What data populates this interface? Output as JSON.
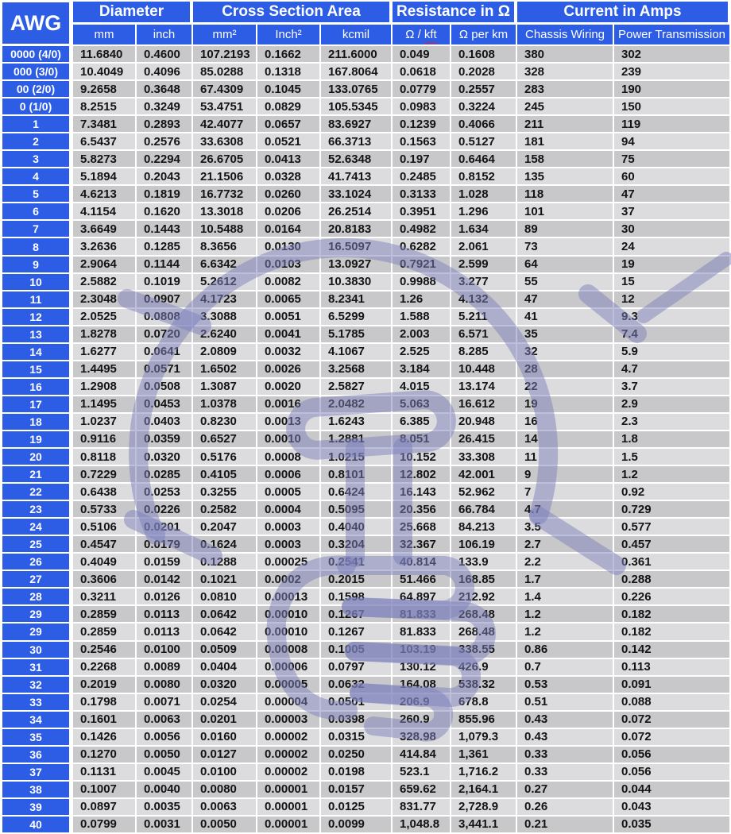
{
  "header": {
    "awg": "AWG",
    "groups": [
      {
        "label": "Diameter",
        "span": 2
      },
      {
        "label": "Cross Section Area",
        "span": 3
      },
      {
        "label": "Resistance in Ω",
        "span": 2
      },
      {
        "label": "Current in Amps",
        "span": 2
      }
    ],
    "sub": [
      "mm",
      "inch",
      "mm²",
      "Inch²",
      "kcmil",
      {
        "prefix": "Ω /",
        "word": "kft"
      },
      "Ω per km",
      "Chassis Wiring",
      "Power Transmission"
    ]
  },
  "colors": {
    "header_blue": "#2d5ce5",
    "row_dark": "#c8c8cb",
    "row_light": "#dcdcde",
    "cell_text": "#141414",
    "watermark_purple": "#7c80ba",
    "spellcheck_red": "#e02020"
  },
  "watermark_icon": "lightbulb-sketch",
  "chart_data": {
    "type": "table",
    "columns": [
      "AWG",
      "Diameter mm",
      "Diameter inch",
      "Cross Section Area mm²",
      "Cross Section Area Inch²",
      "Cross Section Area kcmil",
      "Resistance Ω / kft",
      "Resistance Ω per km",
      "Current in Amps Chassis Wiring",
      "Current in Amps Power Transmission"
    ],
    "rows": [
      [
        "0000 (4/0)",
        "11.6840",
        "0.4600",
        "107.2193",
        "0.1662",
        "211.6000",
        "0.049",
        "0.1608",
        "380",
        "302"
      ],
      [
        "000 (3/0)",
        "10.4049",
        "0.4096",
        "85.0288",
        "0.1318",
        "167.8064",
        "0.0618",
        "0.2028",
        "328",
        "239"
      ],
      [
        "00 (2/0)",
        "9.2658",
        "0.3648",
        "67.4309",
        "0.1045",
        "133.0765",
        "0.0779",
        "0.2557",
        "283",
        "190"
      ],
      [
        "0 (1/0)",
        "8.2515",
        "0.3249",
        "53.4751",
        "0.0829",
        "105.5345",
        "0.0983",
        "0.3224",
        "245",
        "150"
      ],
      [
        "1",
        "7.3481",
        "0.2893",
        "42.4077",
        "0.0657",
        "83.6927",
        "0.1239",
        "0.4066",
        "211",
        "119"
      ],
      [
        "2",
        "6.5437",
        "0.2576",
        "33.6308",
        "0.0521",
        "66.3713",
        "0.1563",
        "0.5127",
        "181",
        "94"
      ],
      [
        "3",
        "5.8273",
        "0.2294",
        "26.6705",
        "0.0413",
        "52.6348",
        "0.197",
        "0.6464",
        "158",
        "75"
      ],
      [
        "4",
        "5.1894",
        "0.2043",
        "21.1506",
        "0.0328",
        "41.7413",
        "0.2485",
        "0.8152",
        "135",
        "60"
      ],
      [
        "5",
        "4.6213",
        "0.1819",
        "16.7732",
        "0.0260",
        "33.1024",
        "0.3133",
        "1.028",
        "118",
        "47"
      ],
      [
        "6",
        "4.1154",
        "0.1620",
        "13.3018",
        "0.0206",
        "26.2514",
        "0.3951",
        "1.296",
        "101",
        "37"
      ],
      [
        "7",
        "3.6649",
        "0.1443",
        "10.5488",
        "0.0164",
        "20.8183",
        "0.4982",
        "1.634",
        "89",
        "30"
      ],
      [
        "8",
        "3.2636",
        "0.1285",
        "8.3656",
        "0.0130",
        "16.5097",
        "0.6282",
        "2.061",
        "73",
        "24"
      ],
      [
        "9",
        "2.9064",
        "0.1144",
        "6.6342",
        "0.0103",
        "13.0927",
        "0.7921",
        "2.599",
        "64",
        "19"
      ],
      [
        "10",
        "2.5882",
        "0.1019",
        "5.2612",
        "0.0082",
        "10.3830",
        "0.9988",
        "3.277",
        "55",
        "15"
      ],
      [
        "11",
        "2.3048",
        "0.0907",
        "4.1723",
        "0.0065",
        "8.2341",
        "1.26",
        "4.132",
        "47",
        "12"
      ],
      [
        "12",
        "2.0525",
        "0.0808",
        "3.3088",
        "0.0051",
        "6.5299",
        "1.588",
        "5.211",
        "41",
        "9.3"
      ],
      [
        "13",
        "1.8278",
        "0.0720",
        "2.6240",
        "0.0041",
        "5.1785",
        "2.003",
        "6.571",
        "35",
        "7.4"
      ],
      [
        "14",
        "1.6277",
        "0.0641",
        "2.0809",
        "0.0032",
        "4.1067",
        "2.525",
        "8.285",
        "32",
        "5.9"
      ],
      [
        "15",
        "1.4495",
        "0.0571",
        "1.6502",
        "0.0026",
        "3.2568",
        "3.184",
        "10.448",
        "28",
        "4.7"
      ],
      [
        "16",
        "1.2908",
        "0.0508",
        "1.3087",
        "0.0020",
        "2.5827",
        "4.015",
        "13.174",
        "22",
        "3.7"
      ],
      [
        "17",
        "1.1495",
        "0.0453",
        "1.0378",
        "0.0016",
        "2.0482",
        "5.063",
        "16.612",
        "19",
        "2.9"
      ],
      [
        "18",
        "1.0237",
        "0.0403",
        "0.8230",
        "0.0013",
        "1.6243",
        "6.385",
        "20.948",
        "16",
        "2.3"
      ],
      [
        "19",
        "0.9116",
        "0.0359",
        "0.6527",
        "0.0010",
        "1.2881",
        "8.051",
        "26.415",
        "14",
        "1.8"
      ],
      [
        "20",
        "0.8118",
        "0.0320",
        "0.5176",
        "0.0008",
        "1.0215",
        "10.152",
        "33.308",
        "11",
        "1.5"
      ],
      [
        "21",
        "0.7229",
        "0.0285",
        "0.4105",
        "0.0006",
        "0.8101",
        "12.802",
        "42.001",
        "9",
        "1.2"
      ],
      [
        "22",
        "0.6438",
        "0.0253",
        "0.3255",
        "0.0005",
        "0.6424",
        "16.143",
        "52.962",
        "7",
        "0.92"
      ],
      [
        "23",
        "0.5733",
        "0.0226",
        "0.2582",
        "0.0004",
        "0.5095",
        "20.356",
        "66.784",
        "4.7",
        "0.729"
      ],
      [
        "24",
        "0.5106",
        "0.0201",
        "0.2047",
        "0.0003",
        "0.4040",
        "25.668",
        "84.213",
        "3.5",
        "0.577"
      ],
      [
        "25",
        "0.4547",
        "0.0179",
        "0.1624",
        "0.0003",
        "0.3204",
        "32.367",
        "106.19",
        "2.7",
        "0.457"
      ],
      [
        "26",
        "0.4049",
        "0.0159",
        "0.1288",
        "0.00025",
        "0.2541",
        "40.814",
        "133.9",
        "2.2",
        "0.361"
      ],
      [
        "27",
        "0.3606",
        "0.0142",
        "0.1021",
        "0.0002",
        "0.2015",
        "51.466",
        "168.85",
        "1.7",
        "0.288"
      ],
      [
        "28",
        "0.3211",
        "0.0126",
        "0.0810",
        "0.00013",
        "0.1598",
        "64.897",
        "212.92",
        "1.4",
        "0.226"
      ],
      [
        "29",
        "0.2859",
        "0.0113",
        "0.0642",
        "0.00010",
        "0.1267",
        "81.833",
        "268.48",
        "1.2",
        "0.182"
      ],
      [
        "29",
        "0.2859",
        "0.0113",
        "0.0642",
        "0.00010",
        "0.1267",
        "81.833",
        "268.48",
        "1.2",
        "0.182"
      ],
      [
        "30",
        "0.2546",
        "0.0100",
        "0.0509",
        "0.00008",
        "0.1005",
        "103.19",
        "338.55",
        "0.86",
        "0.142"
      ],
      [
        "31",
        "0.2268",
        "0.0089",
        "0.0404",
        "0.00006",
        "0.0797",
        "130.12",
        "426.9",
        "0.7",
        "0.113"
      ],
      [
        "32",
        "0.2019",
        "0.0080",
        "0.0320",
        "0.00005",
        "0.0632",
        "164.08",
        "538.32",
        "0.53",
        "0.091"
      ],
      [
        "33",
        "0.1798",
        "0.0071",
        "0.0254",
        "0.00004",
        "0.0501",
        "206.9",
        "678.8",
        "0.51",
        "0.088"
      ],
      [
        "34",
        "0.1601",
        "0.0063",
        "0.0201",
        "0.00003",
        "0.0398",
        "260.9",
        "855.96",
        "0.43",
        "0.072"
      ],
      [
        "35",
        "0.1426",
        "0.0056",
        "0.0160",
        "0.00002",
        "0.0315",
        "328.98",
        "1,079.3",
        "0.43",
        "0.072"
      ],
      [
        "36",
        "0.1270",
        "0.0050",
        "0.0127",
        "0.00002",
        "0.0250",
        "414.84",
        "1,361",
        "0.33",
        "0.056"
      ],
      [
        "37",
        "0.1131",
        "0.0045",
        "0.0100",
        "0.00002",
        "0.0198",
        "523.1",
        "1,716.2",
        "0.33",
        "0.056"
      ],
      [
        "38",
        "0.1007",
        "0.0040",
        "0.0080",
        "0.00001",
        "0.0157",
        "659.62",
        "2,164.1",
        "0.27",
        "0.044"
      ],
      [
        "39",
        "0.0897",
        "0.0035",
        "0.0063",
        "0.00001",
        "0.0125",
        "831.77",
        "2,728.9",
        "0.26",
        "0.043"
      ],
      [
        "40",
        "0.0799",
        "0.0031",
        "0.0050",
        "0.00001",
        "0.0099",
        "1,048.8",
        "3,441.1",
        "0.21",
        "0.035"
      ]
    ]
  }
}
